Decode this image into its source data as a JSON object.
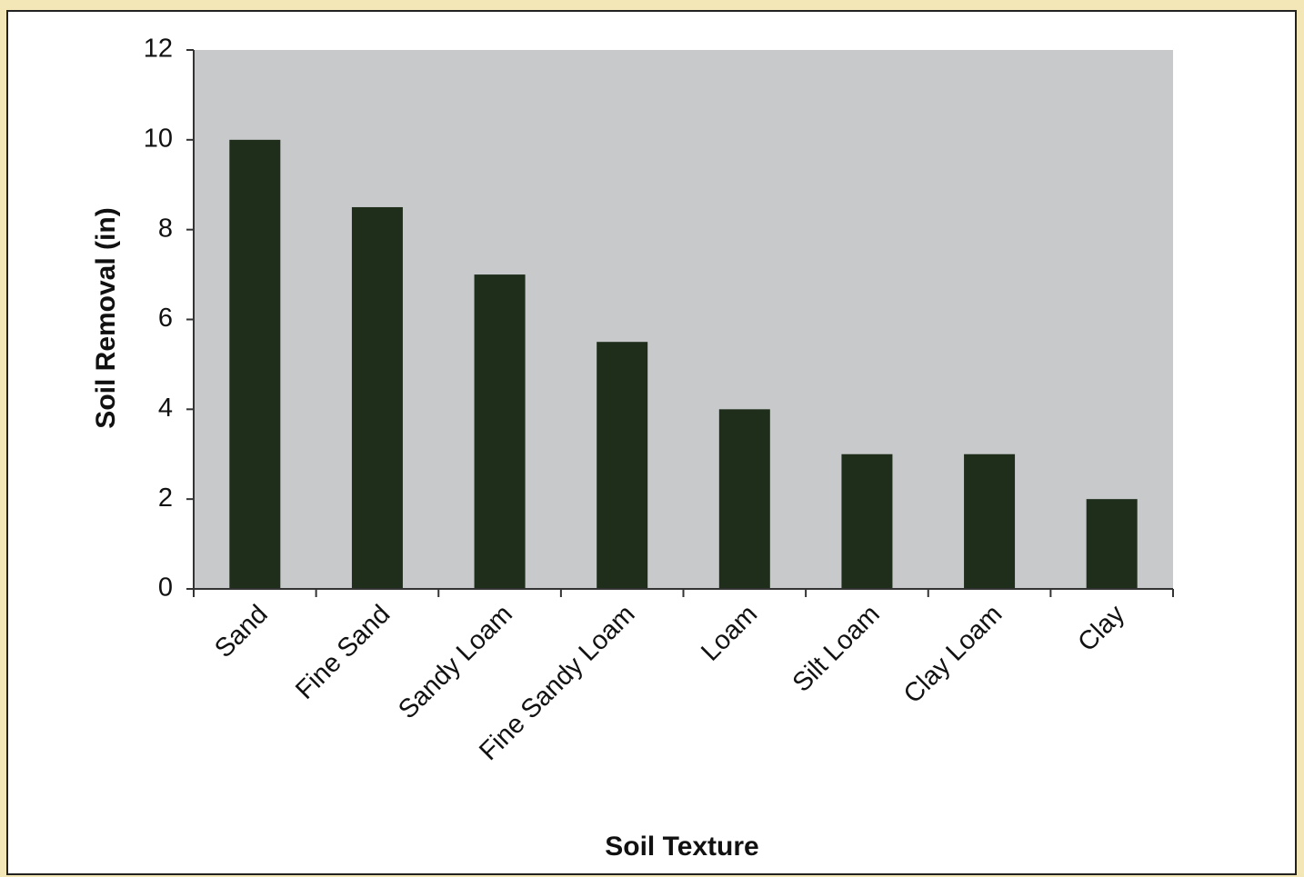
{
  "chart_data": {
    "type": "bar",
    "x_label": "Soil Texture",
    "y_label": "Soil Removal (in)",
    "categories": [
      "Sand",
      "Fine Sand",
      "Sandy Loam",
      "Fine Sandy Loam",
      "Loam",
      "Silt Loam",
      "Clay Loam",
      "Clay"
    ],
    "values": [
      10,
      8.5,
      7,
      5.5,
      4,
      3,
      3,
      2
    ],
    "color": "#1f2d1b",
    "plot_background": "#c8c9cb",
    "ylim": [
      0,
      12
    ],
    "yticks": [
      0,
      2,
      4,
      6,
      8,
      10,
      12
    ],
    "grid": false
  }
}
